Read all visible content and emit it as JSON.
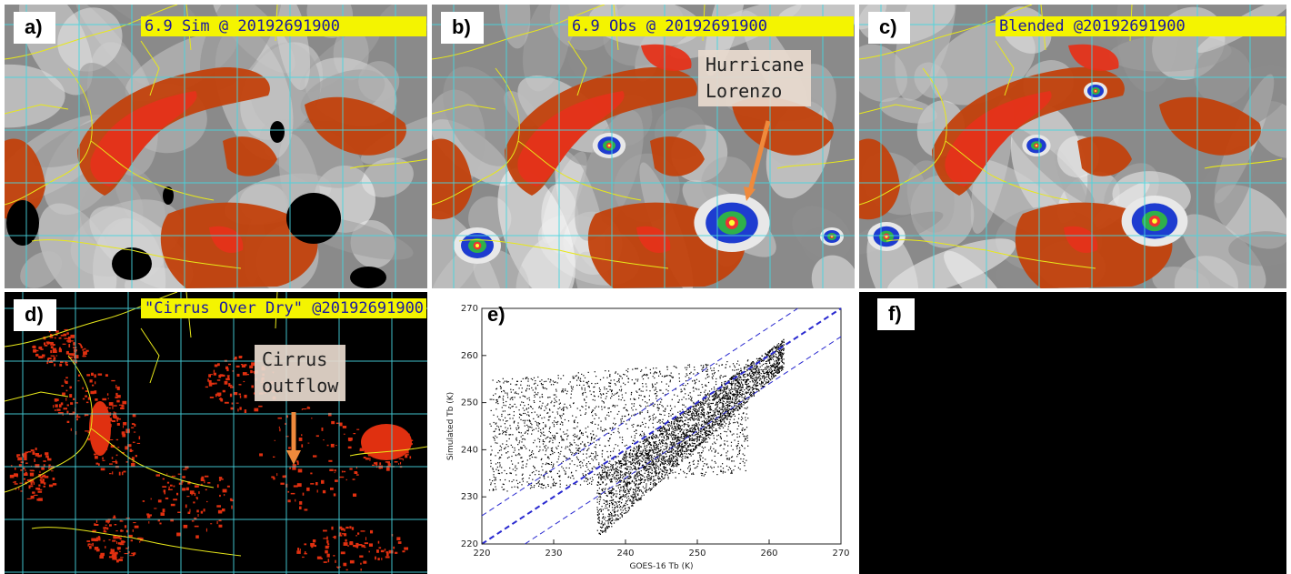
{
  "panels": {
    "a": {
      "tag": "a)",
      "banner": "6.9 Sim @ 20192691900"
    },
    "b": {
      "tag": "b)",
      "banner": "6.9 Obs @ 20192691900",
      "annotation": "Hurricane\nLorenzo"
    },
    "c": {
      "tag": "c)",
      "banner": "Blended @20192691900"
    },
    "d": {
      "tag": "d)",
      "banner": "\"Cirrus Over Dry\" @20192691900",
      "annotation": "Cirrus\noutflow"
    },
    "e": {
      "tag": "e)"
    },
    "f": {
      "tag": "f)"
    }
  },
  "colors": {
    "grid": "#46d6e0",
    "coast": "#e8e81a",
    "banner_bg": "#f4f400",
    "banner_text": "#1a1aa0",
    "dry_red": "#e03010",
    "arrow": "#ef8a3c",
    "fit_line": "#2a2ad0"
  },
  "chart_data": {
    "type": "scatter",
    "xlabel": "GOES-16 Tb (K)",
    "ylabel": "Simulated Tb (K)",
    "xlim": [
      220,
      270
    ],
    "ylim": [
      220,
      270
    ],
    "xticks": [
      "220",
      "230",
      "240",
      "250",
      "260",
      "270"
    ],
    "yticks": [
      "220",
      "230",
      "240",
      "250",
      "260",
      "270"
    ],
    "lines": [
      {
        "name": "",
        "style": "dashed",
        "points": [
          [
            220,
            220
          ],
          [
            270,
            270
          ]
        ]
      },
      {
        "name": "",
        "style": "dashed",
        "points": [
          [
            220,
            226
          ],
          [
            264,
            270
          ]
        ]
      },
      {
        "name": "",
        "style": "dashed",
        "points": [
          [
            226,
            220
          ],
          [
            270,
            264
          ]
        ]
      }
    ],
    "point_density_regions": [
      {
        "x_range": [
          220,
          262
        ],
        "y_center_at_x": [
          [
            220,
            236
          ],
          [
            235,
            239
          ],
          [
            245,
            245
          ],
          [
            255,
            255
          ],
          [
            260,
            260
          ]
        ]
      }
    ]
  }
}
